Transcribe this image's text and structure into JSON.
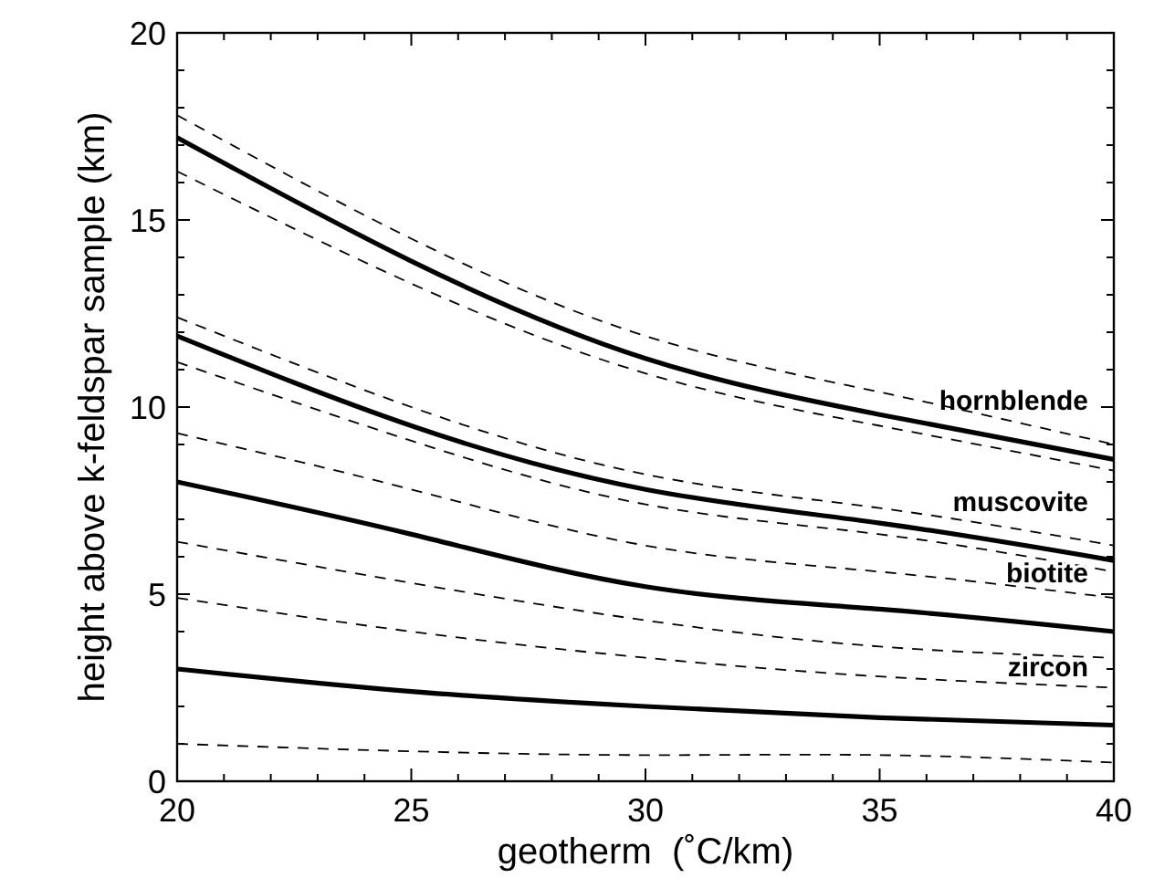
{
  "chart_data": {
    "type": "line",
    "xlabel": "geotherm  (˚C/km)",
    "ylabel": "height above k-feldspar sample (km)",
    "x": [
      20,
      25,
      30,
      35,
      40
    ],
    "xlim": [
      20,
      40
    ],
    "ylim": [
      0,
      20
    ],
    "xticks": [
      20,
      {
        "value": 21,
        "label": null
      },
      {
        "value": 22,
        "label": null
      },
      {
        "value": 23,
        "label": null
      },
      {
        "value": 24,
        "label": null
      },
      25,
      {
        "value": 26,
        "label": null
      },
      {
        "value": 27,
        "label": null
      },
      {
        "value": 28,
        "label": null
      },
      {
        "value": 29,
        "label": null
      },
      30,
      {
        "value": 31,
        "label": null
      },
      {
        "value": 32,
        "label": null
      },
      {
        "value": 33,
        "label": null
      },
      {
        "value": 34,
        "label": null
      },
      35,
      {
        "value": 36,
        "label": null
      },
      {
        "value": 37,
        "label": null
      },
      {
        "value": 38,
        "label": null
      },
      {
        "value": 39,
        "label": null
      },
      40
    ],
    "yticks": [
      0,
      {
        "value": 1,
        "label": null
      },
      {
        "value": 2,
        "label": null
      },
      {
        "value": 3,
        "label": null
      },
      {
        "value": 4,
        "label": null
      },
      5,
      {
        "value": 6,
        "label": null
      },
      {
        "value": 7,
        "label": null
      },
      {
        "value": 8,
        "label": null
      },
      {
        "value": 9,
        "label": null
      },
      10,
      {
        "value": 11,
        "label": null
      },
      {
        "value": 12,
        "label": null
      },
      {
        "value": 13,
        "label": null
      },
      {
        "value": 14,
        "label": null
      },
      15,
      {
        "value": 16,
        "label": null
      },
      {
        "value": 17,
        "label": null
      },
      {
        "value": 18,
        "label": null
      },
      {
        "value": 19,
        "label": null
      },
      20
    ],
    "grid": false,
    "legend": "right",
    "marker": "none",
    "series": [
      {
        "name": "hornblende",
        "color": "#000000",
        "line_style": "solid",
        "values": [
          17.2,
          13.9,
          11.3,
          9.8,
          8.6
        ]
      },
      {
        "color": "#000000",
        "line_style": "dashed",
        "values": [
          17.8,
          14.5,
          11.9,
          10.4,
          9.0
        ]
      },
      {
        "color": "#000000",
        "line_style": "dashed",
        "values": [
          16.3,
          13.3,
          10.9,
          9.5,
          8.3
        ]
      },
      {
        "name": "muscovite",
        "color": "#000000",
        "line_style": "solid",
        "values": [
          11.9,
          9.5,
          7.8,
          6.9,
          5.9
        ]
      },
      {
        "color": "#000000",
        "line_style": "dashed",
        "values": [
          12.4,
          10.0,
          8.2,
          7.3,
          6.3
        ]
      },
      {
        "color": "#000000",
        "line_style": "dashed",
        "values": [
          11.2,
          9.1,
          7.4,
          6.6,
          5.6
        ]
      },
      {
        "name": "biotite",
        "color": "#000000",
        "line_style": "solid",
        "values": [
          8.0,
          6.6,
          5.2,
          4.6,
          4.0
        ]
      },
      {
        "color": "#000000",
        "line_style": "dashed",
        "values": [
          9.3,
          7.8,
          6.3,
          5.6,
          4.9
        ]
      },
      {
        "color": "#000000",
        "line_style": "dashed",
        "values": [
          6.4,
          5.3,
          4.3,
          3.6,
          3.3
        ]
      },
      {
        "name": "zircon",
        "color": "#000000",
        "line_style": "solid",
        "values": [
          3.0,
          2.4,
          2.0,
          1.7,
          1.5
        ]
      },
      {
        "color": "#000000",
        "line_style": "dashed",
        "values": [
          4.9,
          4.0,
          3.3,
          2.8,
          2.5
        ]
      },
      {
        "color": "#000000",
        "line_style": "dashed",
        "values": [
          1.0,
          0.8,
          0.7,
          0.7,
          0.5
        ]
      }
    ]
  }
}
